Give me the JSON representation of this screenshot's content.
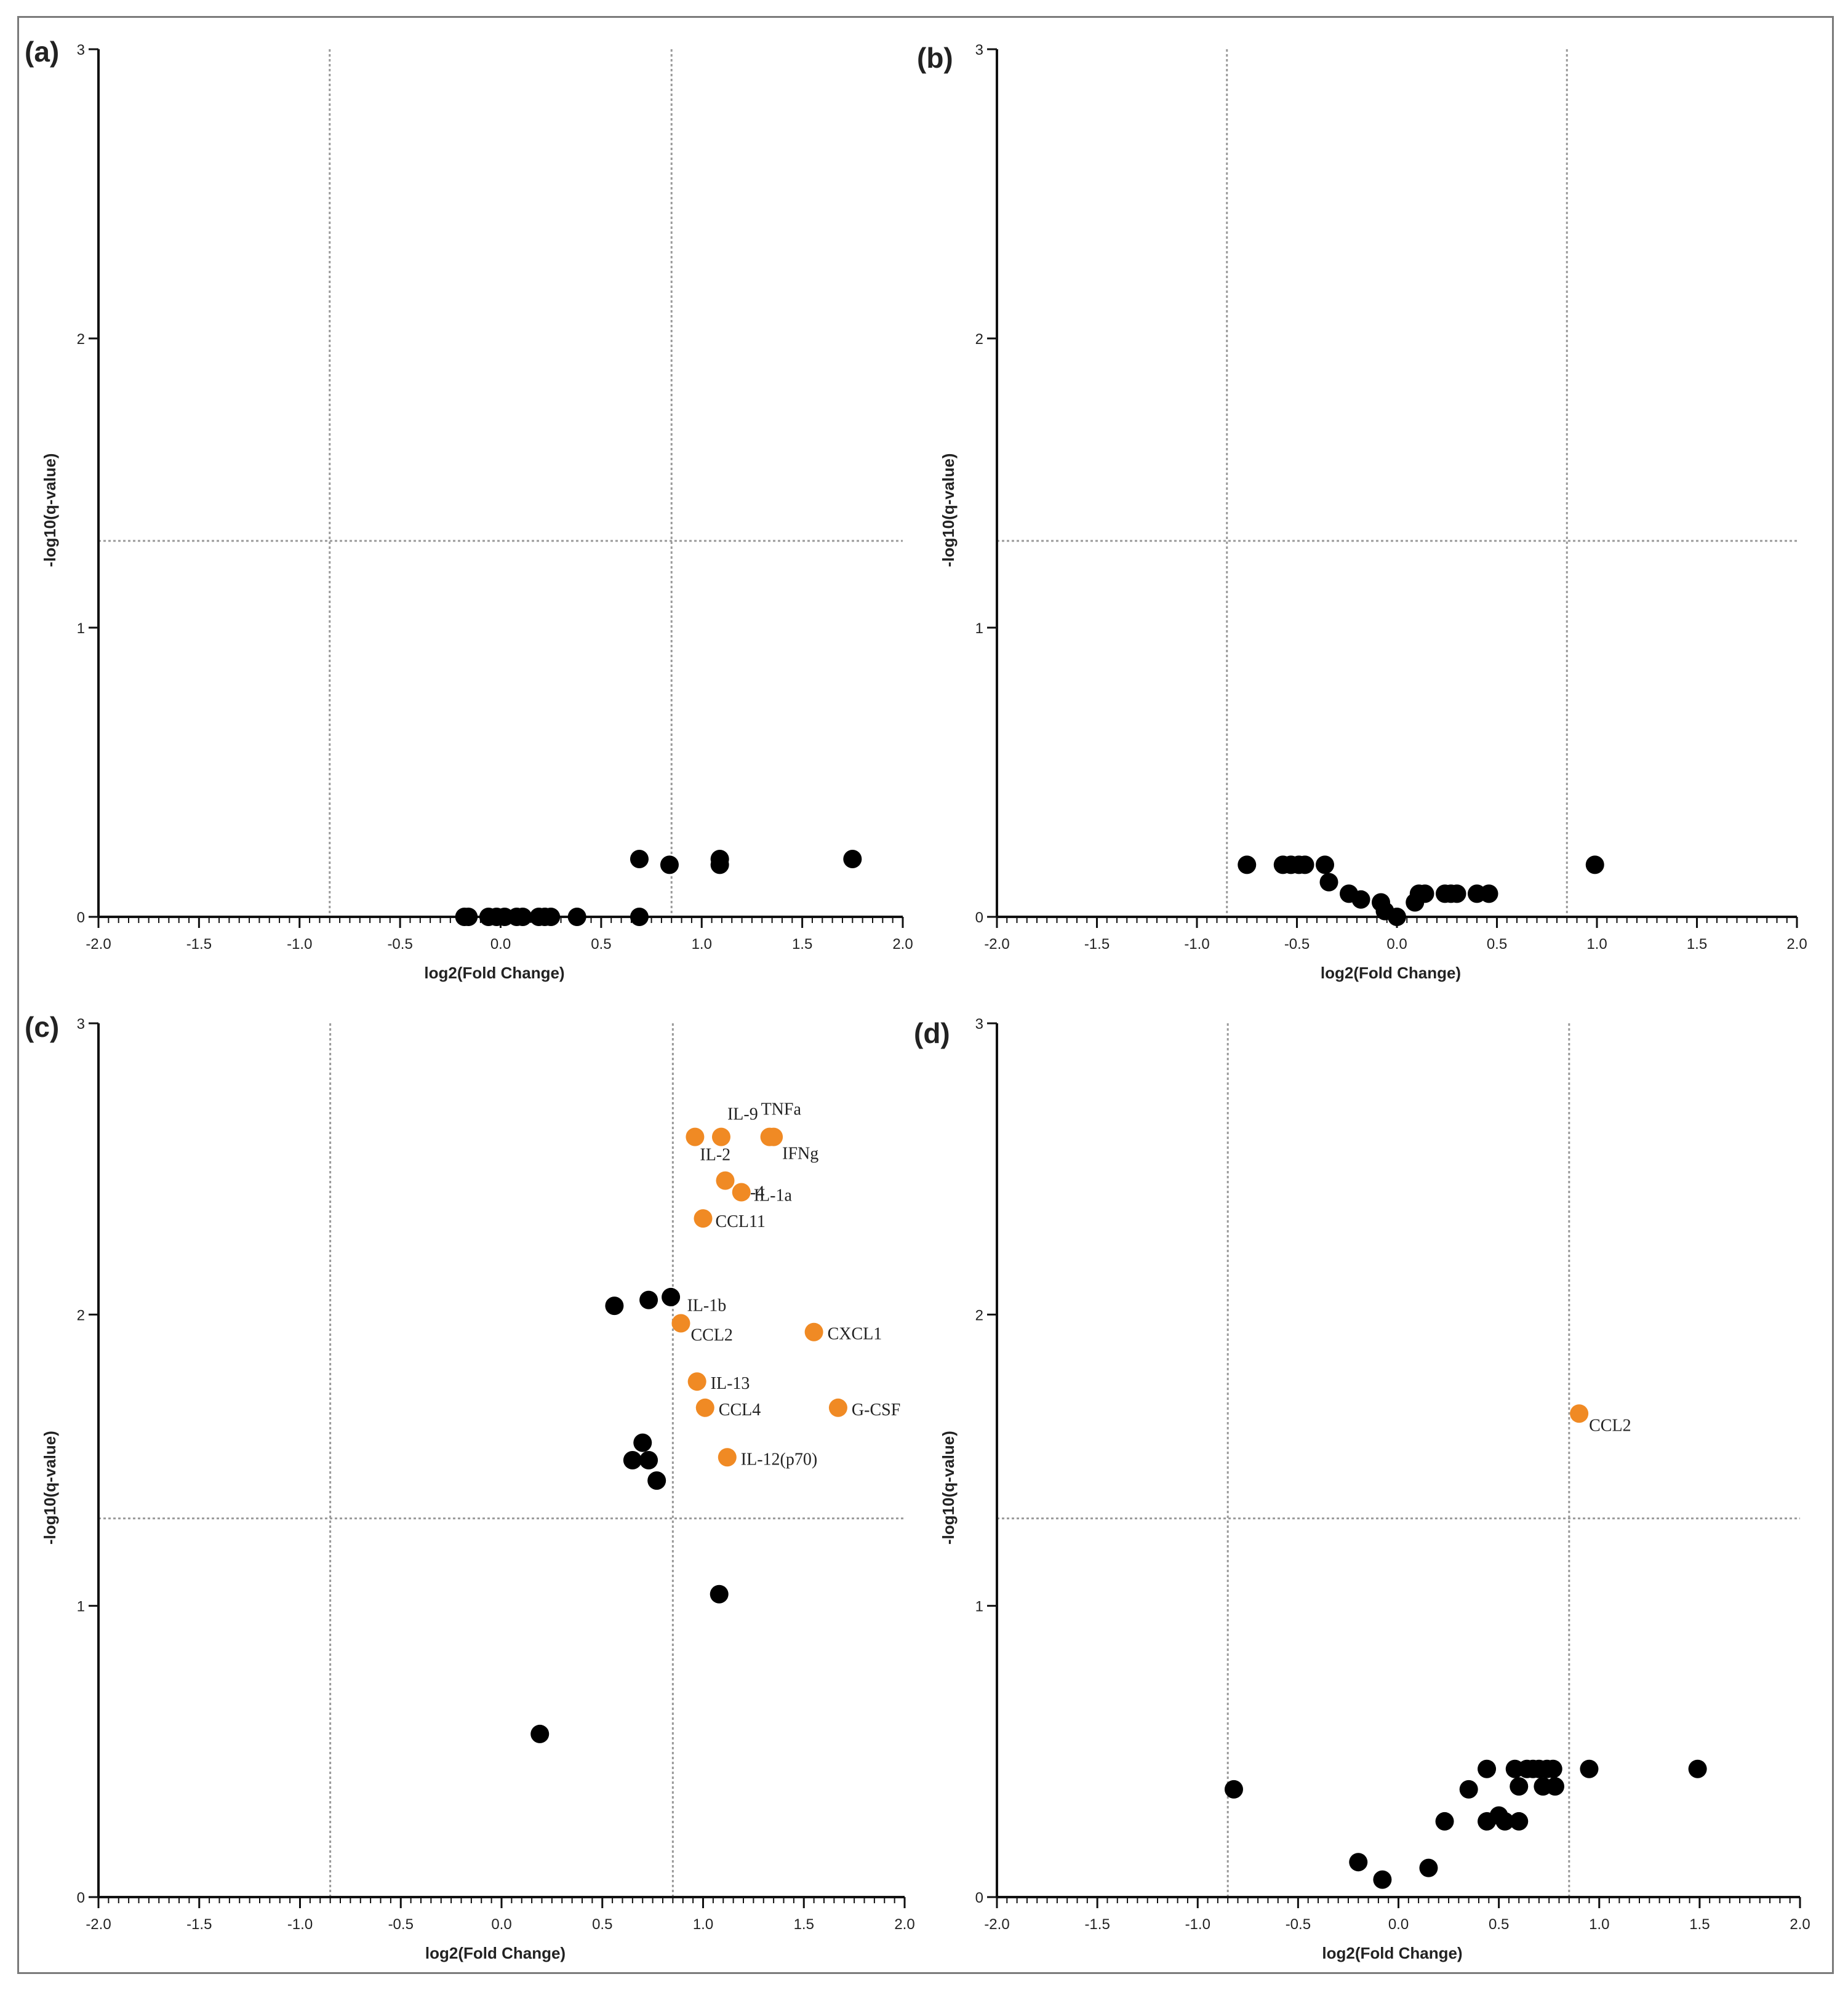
{
  "figure": {
    "colors": {
      "highlight": "#F08A24",
      "point": "#000000",
      "threshold": "#9a9a9a"
    }
  },
  "chart_data": [
    {
      "type": "scatter",
      "panel": "(a)",
      "xlabel": "log2(Fold Change)",
      "ylabel": "-log10(q-value)",
      "xlim": [
        -2.0,
        2.0
      ],
      "ylim": [
        0,
        3
      ],
      "xticks": [
        "-2.0",
        "-1.5",
        "-1.0",
        "-0.5",
        "0.0",
        "0.5",
        "1.0",
        "1.5",
        "2.0"
      ],
      "yticks": [
        "0",
        "1",
        "2",
        "3"
      ],
      "thresholds": {
        "x": [
          -0.85,
          0.85
        ],
        "y": 1.3
      },
      "points": [
        {
          "x": -0.18,
          "y": 0.0
        },
        {
          "x": -0.16,
          "y": 0.0
        },
        {
          "x": -0.06,
          "y": 0.0
        },
        {
          "x": -0.02,
          "y": 0.0
        },
        {
          "x": 0.02,
          "y": 0.0
        },
        {
          "x": 0.08,
          "y": 0.0
        },
        {
          "x": 0.11,
          "y": 0.0
        },
        {
          "x": 0.19,
          "y": 0.0
        },
        {
          "x": 0.22,
          "y": 0.0
        },
        {
          "x": 0.25,
          "y": 0.0
        },
        {
          "x": 0.38,
          "y": 0.0
        },
        {
          "x": 0.69,
          "y": 0.0
        },
        {
          "x": 0.69,
          "y": 0.2
        },
        {
          "x": 0.84,
          "y": 0.18
        },
        {
          "x": 1.09,
          "y": 0.2
        },
        {
          "x": 1.09,
          "y": 0.18
        },
        {
          "x": 1.75,
          "y": 0.2
        }
      ]
    },
    {
      "type": "scatter",
      "panel": "(b)",
      "xlabel": "log2(Fold Change)",
      "ylabel": "-log10(q-value)",
      "xlim": [
        -2.0,
        2.0
      ],
      "ylim": [
        0,
        3
      ],
      "xticks": [
        "-2.0",
        "-1.5",
        "-1.0",
        "-0.5",
        "0.0",
        "0.5",
        "1.0",
        "1.5",
        "2.0"
      ],
      "yticks": [
        "0",
        "1",
        "2",
        "3"
      ],
      "thresholds": {
        "x": [
          -0.85,
          0.85
        ],
        "y": 1.3
      },
      "points": [
        {
          "x": -0.75,
          "y": 0.18
        },
        {
          "x": -0.57,
          "y": 0.18
        },
        {
          "x": -0.53,
          "y": 0.18
        },
        {
          "x": -0.49,
          "y": 0.18
        },
        {
          "x": -0.46,
          "y": 0.18
        },
        {
          "x": -0.36,
          "y": 0.18
        },
        {
          "x": -0.34,
          "y": 0.12
        },
        {
          "x": -0.24,
          "y": 0.08
        },
        {
          "x": -0.18,
          "y": 0.06
        },
        {
          "x": -0.08,
          "y": 0.05
        },
        {
          "x": -0.06,
          "y": 0.02
        },
        {
          "x": 0.0,
          "y": 0.0
        },
        {
          "x": 0.09,
          "y": 0.05
        },
        {
          "x": 0.11,
          "y": 0.08
        },
        {
          "x": 0.14,
          "y": 0.08
        },
        {
          "x": 0.24,
          "y": 0.08
        },
        {
          "x": 0.27,
          "y": 0.08
        },
        {
          "x": 0.3,
          "y": 0.08
        },
        {
          "x": 0.4,
          "y": 0.08
        },
        {
          "x": 0.46,
          "y": 0.08
        },
        {
          "x": 0.99,
          "y": 0.18
        }
      ]
    },
    {
      "type": "scatter",
      "panel": "(c)",
      "xlabel": "log2(Fold Change)",
      "ylabel": "-log10(q-value)",
      "xlim": [
        -2.0,
        2.0
      ],
      "ylim": [
        0,
        3
      ],
      "xticks": [
        "-2.0",
        "-1.5",
        "-1.0",
        "-0.5",
        "0.0",
        "0.5",
        "1.0",
        "1.5",
        "2.0"
      ],
      "yticks": [
        "0",
        "1",
        "2",
        "3"
      ],
      "thresholds": {
        "x": [
          -0.85,
          0.85
        ],
        "y": 1.3
      },
      "points": [
        {
          "x": 0.19,
          "y": 0.56
        },
        {
          "x": 0.56,
          "y": 2.03
        },
        {
          "x": 0.73,
          "y": 2.05
        },
        {
          "x": 0.84,
          "y": 2.06
        },
        {
          "x": 0.65,
          "y": 1.5
        },
        {
          "x": 0.7,
          "y": 1.56
        },
        {
          "x": 0.73,
          "y": 1.5
        },
        {
          "x": 0.77,
          "y": 1.43
        },
        {
          "x": 1.08,
          "y": 1.04
        },
        {
          "x": 0.96,
          "y": 2.61,
          "label": "IL-2",
          "highlight": true
        },
        {
          "x": 1.09,
          "y": 2.61,
          "label": "IL-9",
          "highlight": true
        },
        {
          "x": 1.33,
          "y": 2.61,
          "label": "TNFa",
          "highlight": true
        },
        {
          "x": 1.35,
          "y": 2.61,
          "label": "IFNg",
          "highlight": true
        },
        {
          "x": 1.11,
          "y": 2.46,
          "label": "IL-4",
          "highlight": true
        },
        {
          "x": 1.19,
          "y": 2.42,
          "label": "IL-1a",
          "highlight": true
        },
        {
          "x": 1.0,
          "y": 2.33,
          "label": "CCL11",
          "highlight": true
        },
        {
          "x": 0.89,
          "y": 1.97,
          "label": "IL-1b",
          "highlight": true
        },
        {
          "x": 0.89,
          "y": 1.97,
          "label": "CCL2",
          "highlight": false
        },
        {
          "x": 1.55,
          "y": 1.94,
          "label": "CXCL1",
          "highlight": true
        },
        {
          "x": 0.97,
          "y": 1.77,
          "label": "IL-13",
          "highlight": true
        },
        {
          "x": 1.01,
          "y": 1.68,
          "label": "CCL4",
          "highlight": true
        },
        {
          "x": 1.67,
          "y": 1.68,
          "label": "G-CSF",
          "highlight": true
        },
        {
          "x": 1.12,
          "y": 1.51,
          "label": "IL-12(p70)",
          "highlight": true
        }
      ]
    },
    {
      "type": "scatter",
      "panel": "(d)",
      "xlabel": "log2(Fold Change)",
      "ylabel": "-log10(q-value)",
      "xlim": [
        -2.0,
        2.0
      ],
      "ylim": [
        0,
        3
      ],
      "xticks": [
        "-2.0",
        "-1.5",
        "-1.0",
        "-0.5",
        "0.0",
        "0.5",
        "1.0",
        "1.5",
        "2.0"
      ],
      "yticks": [
        "0",
        "1",
        "2",
        "3"
      ],
      "thresholds": {
        "x": [
          -0.85,
          0.85
        ],
        "y": 1.3
      },
      "points": [
        {
          "x": -0.82,
          "y": 0.37
        },
        {
          "x": -0.2,
          "y": 0.12
        },
        {
          "x": -0.08,
          "y": 0.06
        },
        {
          "x": 0.15,
          "y": 0.1
        },
        {
          "x": 0.23,
          "y": 0.26
        },
        {
          "x": 0.35,
          "y": 0.37
        },
        {
          "x": 0.44,
          "y": 0.26
        },
        {
          "x": 0.44,
          "y": 0.44
        },
        {
          "x": 0.5,
          "y": 0.28
        },
        {
          "x": 0.53,
          "y": 0.26
        },
        {
          "x": 0.58,
          "y": 0.44
        },
        {
          "x": 0.6,
          "y": 0.38
        },
        {
          "x": 0.6,
          "y": 0.26
        },
        {
          "x": 0.64,
          "y": 0.44
        },
        {
          "x": 0.67,
          "y": 0.44
        },
        {
          "x": 0.7,
          "y": 0.44
        },
        {
          "x": 0.72,
          "y": 0.38
        },
        {
          "x": 0.74,
          "y": 0.44
        },
        {
          "x": 0.77,
          "y": 0.44
        },
        {
          "x": 0.78,
          "y": 0.38
        },
        {
          "x": 0.95,
          "y": 0.44
        },
        {
          "x": 1.49,
          "y": 0.44
        },
        {
          "x": 0.9,
          "y": 1.66,
          "label": "CCL2",
          "highlight": true
        }
      ]
    }
  ]
}
